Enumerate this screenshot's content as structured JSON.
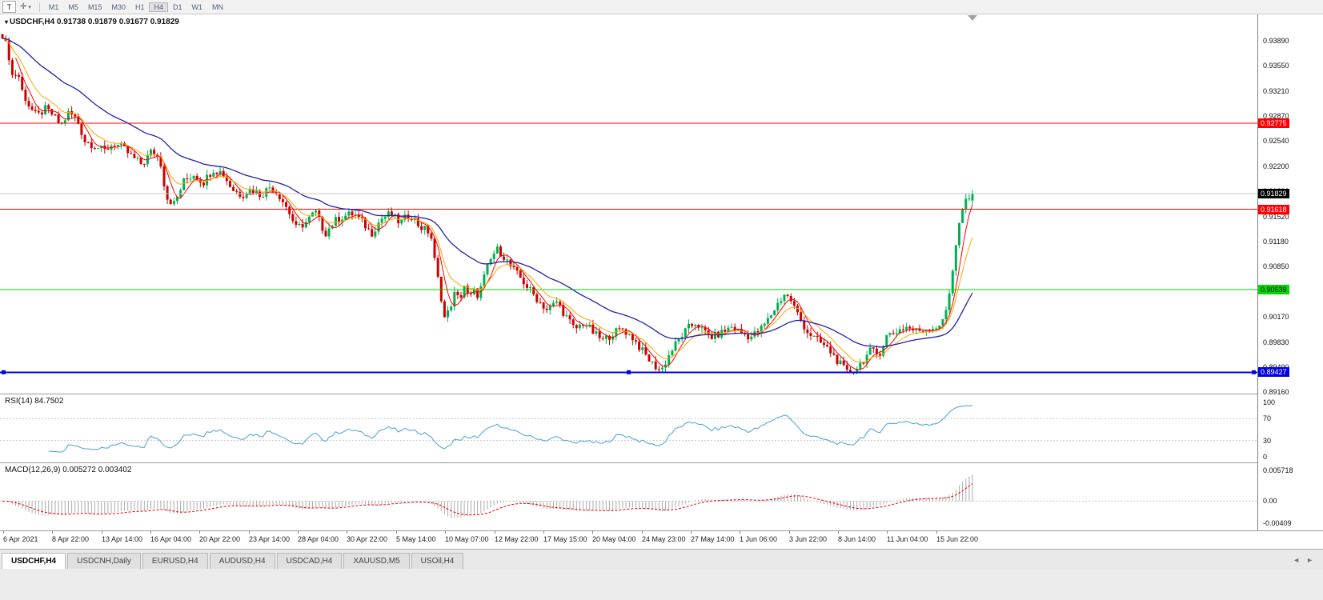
{
  "toolbar": {
    "t_button": "T",
    "crosshair_glyph": "✛",
    "caret_glyph": "▾",
    "timeframes": [
      "M1",
      "M5",
      "M15",
      "M30",
      "H1",
      "H4",
      "D1",
      "W1",
      "MN"
    ],
    "active_timeframe": "H4"
  },
  "chart": {
    "symbol": "USDCHF,H4",
    "header": "USDCHF,H4 0.91738 0.91879 0.91677 0.91829",
    "open": "0.91738",
    "high": "0.91879",
    "low": "0.91677",
    "close": "0.91829",
    "price_min": 0.8914,
    "price_max": 0.9424,
    "bars": 295,
    "price_axis": [
      "0.93890",
      "0.93550",
      "0.93210",
      "0.92870",
      "0.92540",
      "0.92200",
      "0.91860",
      "0.91520",
      "0.91180",
      "0.90850",
      "0.90510",
      "0.90170",
      "0.89830",
      "0.89490",
      "0.89160"
    ],
    "hlines": [
      {
        "price": 0.92775,
        "label": "0.92775",
        "color": "#ff0000",
        "text": "#ffffff",
        "width": 1,
        "handles": false
      },
      {
        "price": 0.91618,
        "label": "0.91618",
        "color": "#ff0000",
        "text": "#ffffff",
        "width": 1,
        "handles": false
      },
      {
        "price": 0.90539,
        "label": "0.90539",
        "color": "#00d800",
        "text": "#000000",
        "width": 1,
        "handles": false
      },
      {
        "price": 0.89427,
        "label": "0.89427",
        "color": "#0000e0",
        "text": "#ffffff",
        "width": 2,
        "handles": true
      }
    ],
    "current_price": {
      "value": 0.91829,
      "label": "0.91829",
      "bg": "#000000",
      "text": "#ffffff"
    },
    "colors": {
      "up": "#00b050",
      "down": "#cc0000",
      "ma_fast": "#ff0000",
      "ma_mid": "#ffa500",
      "ma_slow": "#2020b0",
      "current_line": "#c8c8c8",
      "marker": "#a0a0a0"
    }
  },
  "chart_data": {
    "type": "candlestick",
    "symbol": "USDCHF",
    "timeframe": "H4",
    "anchors": [
      [
        3,
        0.9397
      ],
      [
        10,
        0.9375
      ],
      [
        16,
        0.9338
      ],
      [
        22,
        0.9348
      ],
      [
        28,
        0.932
      ],
      [
        36,
        0.9302
      ],
      [
        46,
        0.9286
      ],
      [
        56,
        0.9297
      ],
      [
        66,
        0.9289
      ],
      [
        76,
        0.9274
      ],
      [
        86,
        0.9292
      ],
      [
        96,
        0.9283
      ],
      [
        106,
        0.9254
      ],
      [
        118,
        0.9248
      ],
      [
        130,
        0.924
      ],
      [
        142,
        0.9251
      ],
      [
        154,
        0.9244
      ],
      [
        166,
        0.9231
      ],
      [
        178,
        0.9222
      ],
      [
        190,
        0.9241
      ],
      [
        200,
        0.9229
      ],
      [
        208,
        0.9178
      ],
      [
        218,
        0.9169
      ],
      [
        230,
        0.92
      ],
      [
        242,
        0.9209
      ],
      [
        254,
        0.9198
      ],
      [
        266,
        0.9216
      ],
      [
        278,
        0.9211
      ],
      [
        290,
        0.9189
      ],
      [
        302,
        0.9181
      ],
      [
        314,
        0.9189
      ],
      [
        326,
        0.9181
      ],
      [
        338,
        0.9193
      ],
      [
        350,
        0.9179
      ],
      [
        360,
        0.9161
      ],
      [
        370,
        0.9136
      ],
      [
        382,
        0.9144
      ],
      [
        394,
        0.9159
      ],
      [
        406,
        0.9129
      ],
      [
        418,
        0.9146
      ],
      [
        430,
        0.9153
      ],
      [
        442,
        0.9156
      ],
      [
        454,
        0.9143
      ],
      [
        464,
        0.9129
      ],
      [
        476,
        0.9149
      ],
      [
        488,
        0.9156
      ],
      [
        500,
        0.9143
      ],
      [
        512,
        0.9156
      ],
      [
        524,
        0.9139
      ],
      [
        538,
        0.913
      ],
      [
        544,
        0.9086
      ],
      [
        550,
        0.9052
      ],
      [
        556,
        0.9012
      ],
      [
        562,
        0.903
      ],
      [
        568,
        0.9048
      ],
      [
        574,
        0.904
      ],
      [
        580,
        0.906
      ],
      [
        586,
        0.904
      ],
      [
        592,
        0.9052
      ],
      [
        598,
        0.9046
      ],
      [
        604,
        0.9068
      ],
      [
        610,
        0.9086
      ],
      [
        616,
        0.9101
      ],
      [
        622,
        0.9108
      ],
      [
        630,
        0.9098
      ],
      [
        640,
        0.9082
      ],
      [
        650,
        0.907
      ],
      [
        660,
        0.9056
      ],
      [
        672,
        0.904
      ],
      [
        684,
        0.9026
      ],
      [
        696,
        0.9038
      ],
      [
        706,
        0.902
      ],
      [
        718,
        0.9
      ],
      [
        730,
        0.901
      ],
      [
        742,
        0.8995
      ],
      [
        754,
        0.8985
      ],
      [
        766,
        0.8996
      ],
      [
        778,
        0.9001
      ],
      [
        790,
        0.899
      ],
      [
        802,
        0.8972
      ],
      [
        814,
        0.8955
      ],
      [
        826,
        0.8945
      ],
      [
        838,
        0.897
      ],
      [
        850,
        0.899
      ],
      [
        860,
        0.9002
      ],
      [
        870,
        0.901
      ],
      [
        878,
        0.8998
      ],
      [
        890,
        0.899
      ],
      [
        902,
        0.8996
      ],
      [
        914,
        0.9004
      ],
      [
        926,
        0.8996
      ],
      [
        938,
        0.899
      ],
      [
        950,
        0.9
      ],
      [
        960,
        0.9014
      ],
      [
        970,
        0.9032
      ],
      [
        980,
        0.9048
      ],
      [
        988,
        0.904
      ],
      [
        998,
        0.9018
      ],
      [
        1008,
        0.8998
      ],
      [
        1018,
        0.8988
      ],
      [
        1028,
        0.898
      ],
      [
        1038,
        0.897
      ],
      [
        1048,
        0.8956
      ],
      [
        1058,
        0.8942
      ],
      [
        1068,
        0.8946
      ],
      [
        1078,
        0.8958
      ],
      [
        1088,
        0.8972
      ],
      [
        1098,
        0.8966
      ],
      [
        1108,
        0.8992
      ],
      [
        1120,
        0.8998
      ],
      [
        1132,
        0.9004
      ],
      [
        1144,
        0.8998
      ],
      [
        1156,
        0.9001
      ],
      [
        1168,
        0.9003
      ],
      [
        1178,
        0.901
      ],
      [
        1184,
        0.9034
      ],
      [
        1190,
        0.908
      ],
      [
        1196,
        0.9128
      ],
      [
        1202,
        0.916
      ],
      [
        1207,
        0.9172
      ],
      [
        1211,
        0.9174
      ],
      [
        1215,
        0.91829
      ]
    ]
  },
  "rsi": {
    "title": "RSI(14) 84.7502",
    "period": 14,
    "last_value": "84.7502",
    "axis_labels": [
      "100",
      "70",
      "30",
      "0"
    ],
    "levels": [
      70,
      30
    ],
    "line_color": "#57a7dd",
    "level_color": "#c8c8c8"
  },
  "macd": {
    "title": "MACD(12,26,9) 0.005272 0.003402",
    "fast": 12,
    "slow": 26,
    "signal": 9,
    "macd_value": "0.005272",
    "signal_value": "0.003402",
    "axis_labels": [
      "0.005718",
      "0.00",
      "-0.00409"
    ],
    "scale_max": 0.0058,
    "scale_min": -0.0042,
    "hist_color": "#ababab",
    "signal_color": "#ee0000",
    "zero_color": "#c8c8c8"
  },
  "time_axis": [
    "6 Apr 2021",
    "8 Apr 22:00",
    "13 Apr 14:00",
    "16 Apr 04:00",
    "20 Apr 22:00",
    "23 Apr 14:00",
    "28 Apr 04:00",
    "30 Apr 22:00",
    "5 May 14:00",
    "10 May 07:00",
    "12 May 22:00",
    "17 May 15:00",
    "20 May 04:00",
    "24 May 23:00",
    "27 May 14:00",
    "1 Jun 06:00",
    "3 Jun 22:00",
    "8 Jun 14:00",
    "11 Jun 04:00",
    "15 Jun 22:00"
  ],
  "tabs": {
    "items": [
      "USDCHF,H4",
      "USDCNH,Daily",
      "EURUSD,H4",
      "AUDUSD,H4",
      "USDCAD,H4",
      "XAUUSD,M5",
      "USOil,H4"
    ],
    "active_index": 0,
    "scroll_left": "◄",
    "scroll_right": "►"
  }
}
